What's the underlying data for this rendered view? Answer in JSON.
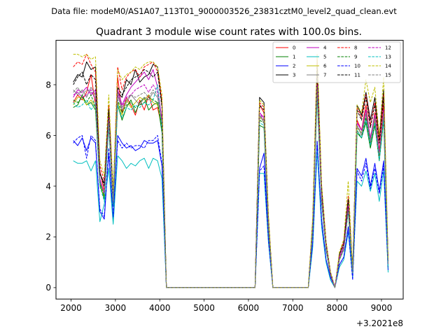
{
  "data_file_label": "Data file: modeM0/AS1A07_113T01_9000003526_23831cztM0_level2_quad_clean.evt",
  "chart_data": {
    "type": "line",
    "title": "Quadrant 3 module wise count rates with 100.0s bins.",
    "xlabel": "",
    "ylabel": "",
    "offset_label": "+3.2021e8",
    "xlim": [
      1660,
      9490
    ],
    "ylim": [
      -0.45,
      9.75
    ],
    "xticks": [
      2000,
      3000,
      4000,
      5000,
      6000,
      7000,
      8000,
      9000
    ],
    "yticks": [
      0,
      2,
      4,
      6,
      8
    ],
    "legend_position": "upper right",
    "x": [
      2050,
      2150,
      2250,
      2350,
      2450,
      2550,
      2650,
      2750,
      2850,
      2950,
      3050,
      3150,
      3250,
      3350,
      3450,
      3550,
      3650,
      3750,
      3850,
      3950,
      4050,
      4150,
      6150,
      6250,
      6350,
      6450,
      6550,
      6650,
      7350,
      7450,
      7550,
      7650,
      7750,
      7850,
      7950,
      8050,
      8150,
      8250,
      8350,
      8450,
      8550,
      8650,
      8750,
      8850,
      8950,
      9050,
      9150
    ],
    "series": [
      {
        "name": "0",
        "color": "#ff0000",
        "dash": false,
        "values": [
          7.3,
          7.6,
          7.4,
          7.7,
          8.4,
          7.2,
          4.6,
          3.8,
          6.9,
          3.3,
          8.3,
          6.9,
          7.5,
          7.2,
          6.8,
          7.4,
          7.0,
          7.6,
          7.0,
          7.1,
          6.3,
          0.0,
          0.0,
          7.2,
          6.9,
          2.6,
          0.0,
          0.0,
          0.0,
          2.5,
          8.1,
          3.6,
          1.6,
          0.6,
          0.0,
          1.2,
          1.6,
          3.2,
          0.6,
          6.6,
          6.2,
          7.2,
          5.8,
          6.9,
          5.4,
          7.2,
          0.9
        ]
      },
      {
        "name": "1",
        "color": "#008000",
        "dash": false,
        "values": [
          7.1,
          7.2,
          7.6,
          7.2,
          7.3,
          7.0,
          4.1,
          3.5,
          6.4,
          3.2,
          7.2,
          6.6,
          7.1,
          7.4,
          6.9,
          7.3,
          7.5,
          7.0,
          7.2,
          7.3,
          6.1,
          0.0,
          0.0,
          6.4,
          6.3,
          2.4,
          0.0,
          0.0,
          0.0,
          2.3,
          7.6,
          3.4,
          1.5,
          0.5,
          0.0,
          1.1,
          1.5,
          3.1,
          0.6,
          6.1,
          5.9,
          6.5,
          5.5,
          6.4,
          5.0,
          6.6,
          0.8
        ]
      },
      {
        "name": "2",
        "color": "#0000ff",
        "dash": false,
        "values": [
          5.8,
          5.6,
          5.9,
          5.4,
          5.9,
          5.7,
          3.0,
          2.7,
          5.3,
          2.7,
          6.0,
          5.7,
          5.5,
          5.6,
          5.4,
          5.5,
          5.8,
          5.7,
          5.7,
          5.8,
          4.8,
          0.0,
          0.0,
          4.7,
          5.3,
          2.0,
          0.0,
          0.0,
          0.0,
          1.8,
          5.7,
          2.7,
          1.1,
          0.4,
          0.0,
          0.9,
          1.2,
          2.4,
          0.4,
          4.7,
          4.4,
          5.1,
          4.0,
          4.9,
          3.8,
          5.0,
          0.7
        ]
      },
      {
        "name": "3",
        "color": "#000000",
        "dash": false,
        "values": [
          8.1,
          8.4,
          8.3,
          8.9,
          8.6,
          8.7,
          4.5,
          4.1,
          7.1,
          3.5,
          7.7,
          7.5,
          8.2,
          8.0,
          8.6,
          8.1,
          8.3,
          8.4,
          8.8,
          8.7,
          7.2,
          0.0,
          0.0,
          7.5,
          7.3,
          2.8,
          0.0,
          0.0,
          0.0,
          2.6,
          8.9,
          4.0,
          1.8,
          0.6,
          0.0,
          1.3,
          1.8,
          3.5,
          0.6,
          7.2,
          6.8,
          7.7,
          6.6,
          7.5,
          5.9,
          7.8,
          1.0
        ]
      },
      {
        "name": "4",
        "color": "#bf00bf",
        "dash": false,
        "values": [
          7.5,
          7.8,
          7.7,
          7.9,
          7.6,
          7.8,
          4.3,
          3.7,
          6.7,
          3.4,
          7.8,
          7.2,
          7.6,
          7.9,
          8.1,
          8.3,
          8.5,
          8.2,
          8.6,
          7.9,
          6.6,
          0.0,
          0.0,
          6.9,
          6.7,
          2.5,
          0.0,
          0.0,
          0.0,
          2.4,
          8.0,
          3.6,
          1.6,
          0.5,
          0.0,
          1.2,
          1.6,
          3.2,
          0.6,
          6.5,
          6.2,
          7.0,
          5.9,
          6.8,
          5.3,
          7.0,
          0.9
        ]
      },
      {
        "name": "5",
        "color": "#00bfbf",
        "dash": false,
        "values": [
          5.0,
          4.9,
          4.9,
          5.0,
          4.6,
          5.0,
          2.6,
          3.3,
          4.7,
          2.5,
          5.2,
          5.0,
          4.7,
          4.9,
          4.8,
          5.0,
          5.1,
          4.7,
          5.1,
          5.0,
          4.3,
          0.0,
          0.0,
          4.5,
          4.5,
          1.8,
          0.0,
          0.0,
          0.0,
          1.6,
          5.4,
          2.4,
          1.0,
          0.3,
          0.0,
          0.8,
          1.1,
          2.2,
          0.4,
          4.2,
          4.0,
          4.6,
          3.8,
          4.5,
          3.4,
          4.6,
          0.6
        ]
      },
      {
        "name": "6",
        "color": "#bfbf00",
        "dash": false,
        "values": [
          7.2,
          7.5,
          7.5,
          7.2,
          7.4,
          7.1,
          4.0,
          3.6,
          6.8,
          3.3,
          7.3,
          6.8,
          7.4,
          7.1,
          7.3,
          7.5,
          7.4,
          7.6,
          7.3,
          7.2,
          6.4,
          0.0,
          0.0,
          6.7,
          6.6,
          2.4,
          0.0,
          0.0,
          0.0,
          2.4,
          7.8,
          3.5,
          1.6,
          0.5,
          0.0,
          1.1,
          1.5,
          3.1,
          0.6,
          6.3,
          6.1,
          6.8,
          5.8,
          6.6,
          5.2,
          6.8,
          0.9
        ]
      },
      {
        "name": "7",
        "color": "#808080",
        "dash": false,
        "values": [
          7.8,
          7.6,
          7.8,
          7.5,
          7.9,
          7.6,
          4.2,
          3.7,
          6.5,
          3.4,
          7.6,
          7.0,
          7.3,
          7.6,
          7.4,
          7.2,
          7.5,
          7.4,
          7.7,
          7.5,
          6.5,
          0.0,
          0.0,
          6.8,
          6.5,
          2.5,
          0.0,
          0.0,
          0.0,
          2.4,
          7.9,
          3.5,
          1.5,
          0.5,
          0.0,
          1.1,
          1.5,
          3.1,
          0.6,
          6.4,
          6.0,
          6.8,
          5.7,
          6.7,
          5.2,
          6.9,
          0.9
        ]
      },
      {
        "name": "8",
        "color": "#ff0000",
        "dash": true,
        "values": [
          8.7,
          8.9,
          8.8,
          9.2,
          8.8,
          8.5,
          4.8,
          4.2,
          7.2,
          3.7,
          8.7,
          7.8,
          8.3,
          8.5,
          8.6,
          8.3,
          8.7,
          8.8,
          8.9,
          8.5,
          7.4,
          0.0,
          0.0,
          7.3,
          7.1,
          2.8,
          0.0,
          0.0,
          0.0,
          2.7,
          9.0,
          4.0,
          1.8,
          0.6,
          0.0,
          1.3,
          1.8,
          3.6,
          0.7,
          7.1,
          6.7,
          7.6,
          6.4,
          7.3,
          5.8,
          7.6,
          1.0
        ]
      },
      {
        "name": "9",
        "color": "#008000",
        "dash": true,
        "values": [
          7.4,
          7.3,
          7.5,
          7.3,
          7.6,
          7.1,
          4.1,
          3.6,
          6.6,
          3.3,
          7.4,
          6.9,
          7.2,
          7.3,
          7.1,
          7.2,
          7.3,
          7.5,
          7.4,
          7.3,
          6.3,
          0.0,
          0.0,
          6.6,
          6.5,
          2.4,
          0.0,
          0.0,
          0.0,
          2.3,
          7.7,
          3.4,
          1.5,
          0.5,
          0.0,
          1.1,
          1.5,
          3.0,
          0.6,
          6.2,
          5.9,
          6.7,
          5.6,
          6.5,
          5.1,
          6.7,
          0.8
        ]
      },
      {
        "name": "10",
        "color": "#0000ff",
        "dash": true,
        "values": [
          5.7,
          5.9,
          6.0,
          5.1,
          6.0,
          5.8,
          3.1,
          2.8,
          5.5,
          2.8,
          5.8,
          5.5,
          5.7,
          5.5,
          5.6,
          5.6,
          5.5,
          5.8,
          5.8,
          6.0,
          4.9,
          0.0,
          0.0,
          4.6,
          4.8,
          1.9,
          0.0,
          0.0,
          0.0,
          1.8,
          5.8,
          2.6,
          1.1,
          0.4,
          0.0,
          0.9,
          1.2,
          2.3,
          0.3,
          4.6,
          4.2,
          4.9,
          3.9,
          4.7,
          3.7,
          4.8,
          0.7
        ]
      },
      {
        "name": "11",
        "color": "#000000",
        "dash": true,
        "values": [
          8.0,
          8.3,
          8.5,
          8.0,
          8.4,
          8.2,
          4.5,
          4.0,
          7.0,
          3.6,
          7.9,
          7.6,
          7.9,
          8.2,
          8.3,
          8.4,
          8.6,
          8.5,
          8.3,
          8.5,
          7.1,
          0.0,
          0.0,
          7.2,
          7.0,
          2.7,
          0.0,
          0.0,
          0.0,
          2.6,
          8.7,
          3.9,
          1.7,
          0.6,
          0.0,
          1.3,
          1.7,
          3.5,
          0.7,
          7.0,
          6.6,
          7.5,
          6.3,
          7.2,
          5.7,
          7.5,
          1.0
        ]
      },
      {
        "name": "12",
        "color": "#bf00bf",
        "dash": true,
        "values": [
          7.6,
          7.7,
          7.5,
          7.6,
          7.8,
          7.4,
          4.2,
          3.7,
          6.7,
          3.4,
          7.6,
          7.1,
          7.5,
          7.6,
          7.8,
          7.9,
          8.0,
          7.7,
          8.0,
          7.7,
          6.6,
          0.0,
          0.0,
          6.9,
          6.6,
          2.5,
          0.0,
          0.0,
          0.0,
          2.4,
          8.0,
          3.6,
          1.6,
          0.5,
          0.0,
          1.2,
          1.6,
          3.2,
          0.6,
          6.5,
          6.2,
          7.0,
          5.9,
          6.8,
          5.3,
          7.0,
          0.9
        ]
      },
      {
        "name": "13",
        "color": "#00bfbf",
        "dash": true,
        "values": [
          7.3,
          7.1,
          7.2,
          7.4,
          7.0,
          7.3,
          4.0,
          3.4,
          6.4,
          3.2,
          7.2,
          6.7,
          7.1,
          7.0,
          7.2,
          7.1,
          7.3,
          7.2,
          7.4,
          8.0,
          6.2,
          0.0,
          0.0,
          6.5,
          6.4,
          2.4,
          0.0,
          0.0,
          0.0,
          2.3,
          7.6,
          3.4,
          1.5,
          0.5,
          0.0,
          1.1,
          1.5,
          3.0,
          0.6,
          6.2,
          5.9,
          6.6,
          5.6,
          6.5,
          5.0,
          6.6,
          0.8
        ]
      },
      {
        "name": "14",
        "color": "#bfbf00",
        "dash": true,
        "values": [
          9.2,
          9.2,
          9.1,
          9.2,
          9.0,
          9.1,
          5.0,
          4.4,
          7.6,
          3.8,
          8.6,
          8.2,
          8.4,
          8.5,
          8.7,
          8.6,
          8.8,
          8.9,
          8.9,
          8.7,
          7.6,
          0.0,
          0.0,
          7.4,
          7.2,
          2.9,
          0.0,
          0.0,
          0.0,
          2.8,
          9.2,
          4.1,
          1.8,
          0.6,
          0.0,
          1.4,
          1.9,
          4.2,
          0.7,
          7.2,
          6.9,
          8.2,
          7.3,
          7.9,
          6.0,
          8.3,
          1.1
        ]
      },
      {
        "name": "15",
        "color": "#808080",
        "dash": true,
        "values": [
          7.7,
          7.9,
          7.6,
          7.8,
          7.7,
          7.5,
          4.2,
          3.7,
          6.6,
          3.4,
          7.7,
          7.1,
          7.4,
          7.6,
          7.5,
          7.6,
          7.7,
          7.5,
          7.8,
          7.6,
          6.5,
          0.0,
          0.0,
          6.8,
          6.6,
          2.5,
          0.0,
          0.0,
          0.0,
          2.4,
          7.9,
          3.5,
          1.6,
          0.5,
          0.0,
          1.1,
          1.5,
          3.1,
          0.6,
          6.4,
          6.1,
          6.9,
          5.8,
          6.7,
          5.2,
          6.9,
          0.9
        ]
      }
    ]
  }
}
